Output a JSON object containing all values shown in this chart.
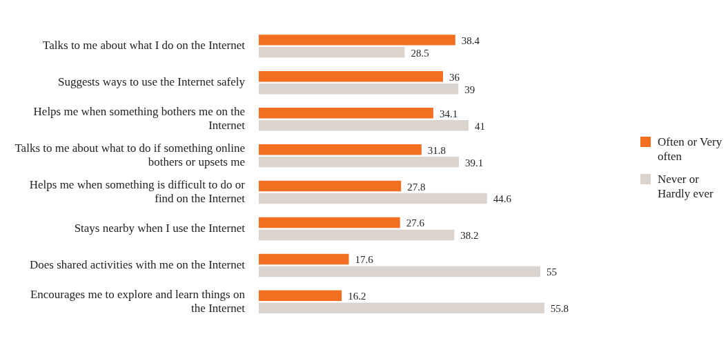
{
  "chart_data": {
    "type": "bar",
    "orientation": "horizontal",
    "categories": [
      "Talks to me about what I do on the Internet",
      "Suggests ways to use the Internet safely",
      "Helps me when something bothers me on the Internet",
      "Talks to me about what to do if something online bothers or upsets me",
      "Helps me when something is difficult to do or find on the Internet",
      "Stays nearby when I use the Internet",
      "Does shared activities with me on the Internet",
      "Encourages me to explore and learn things on the Internet"
    ],
    "series": [
      {
        "name": "Often or Very often",
        "color": "#f26f21",
        "values": [
          38.4,
          36,
          34.1,
          31.8,
          27.8,
          27.6,
          17.6,
          16.2
        ]
      },
      {
        "name": "Never or Hardly ever",
        "color": "#dbd3cd",
        "values": [
          28.5,
          39,
          41,
          39.1,
          44.6,
          38.2,
          55,
          55.8
        ]
      }
    ],
    "data_labels": true,
    "legend": "right",
    "grid": false,
    "tick_labels": "y"
  }
}
